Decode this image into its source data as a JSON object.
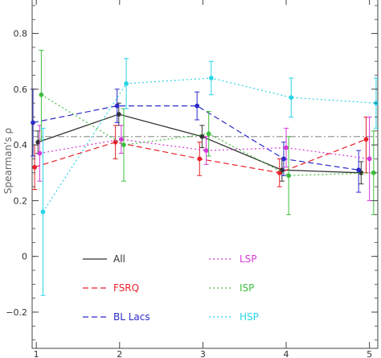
{
  "chart_data": {
    "type": "line",
    "title": "",
    "xlabel": "",
    "ylabel": "Spearman's ρ",
    "xlim": [
      0.95,
      5.1
    ],
    "ylim": [
      -0.33,
      0.92
    ],
    "x_ticks": [
      1,
      2,
      3,
      4,
      5
    ],
    "x_tick_labels": [
      "1",
      "2",
      "3",
      "4",
      "5"
    ],
    "y_ticks": [
      -0.2,
      0,
      0.2,
      0.4,
      0.6,
      0.8
    ],
    "y_tick_labels": [
      "−0.2",
      "0",
      "0.2",
      "0.4",
      "0.6",
      "0.8"
    ],
    "grid": false,
    "legend_position": "bottom-center",
    "reference_line": {
      "y": 0.43,
      "style": "dash-dot",
      "color": "#999999"
    },
    "series": [
      {
        "name": "All",
        "color": "#333333",
        "dash": "solid",
        "x": [
          1.02,
          1.99,
          2.99,
          3.95,
          4.9
        ],
        "y": [
          0.41,
          0.51,
          0.43,
          0.31,
          0.3
        ],
        "err_low": [
          0.04,
          0.04,
          0.04,
          0.04,
          0.04
        ],
        "err_high": [
          0.04,
          0.04,
          0.04,
          0.04,
          0.04
        ]
      },
      {
        "name": "FSRQ",
        "color": "#e8212a",
        "dash": "dashed",
        "x": [
          0.98,
          1.95,
          2.96,
          3.92,
          4.96
        ],
        "y": [
          0.32,
          0.41,
          0.35,
          0.3,
          0.42
        ],
        "err_low": [
          0.08,
          0.06,
          0.06,
          0.05,
          0.12
        ],
        "err_high": [
          0.08,
          0.06,
          0.06,
          0.05,
          0.08
        ]
      },
      {
        "name": "BL Lacs",
        "color": "#2b2bc8",
        "dash": "dashed",
        "x": [
          0.96,
          1.97,
          2.93,
          3.97,
          4.87
        ],
        "y": [
          0.48,
          0.54,
          0.54,
          0.35,
          0.31
        ],
        "err_low": [
          0.12,
          0.06,
          0.05,
          0.06,
          0.08
        ],
        "err_high": [
          0.12,
          0.06,
          0.05,
          0.06,
          0.07
        ]
      },
      {
        "name": "LSP",
        "color": "#d63ad6",
        "dash": "dotted",
        "x": [
          1.04,
          2.02,
          3.04,
          4.0,
          5.0
        ],
        "y": [
          0.37,
          0.42,
          0.38,
          0.39,
          0.35
        ],
        "err_low": [
          0.1,
          0.05,
          0.05,
          0.07,
          0.15
        ],
        "err_high": [
          0.1,
          0.05,
          0.05,
          0.07,
          0.15
        ]
      },
      {
        "name": "ISP",
        "color": "#3fbf3f",
        "dash": "dotted",
        "x": [
          1.06,
          2.05,
          3.07,
          4.03,
          5.05
        ],
        "y": [
          0.58,
          0.4,
          0.44,
          0.29,
          0.3
        ],
        "err_low": [
          0.16,
          0.13,
          0.08,
          0.14,
          0.15
        ],
        "err_high": [
          0.16,
          0.13,
          0.08,
          0.14,
          0.15
        ]
      },
      {
        "name": "HSP",
        "color": "#28d4e8",
        "dash": "dotted",
        "x": [
          1.08,
          2.08,
          3.1,
          4.06,
          5.08
        ],
        "y": [
          0.16,
          0.62,
          0.64,
          0.57,
          0.55
        ],
        "err_low": [
          0.3,
          0.09,
          0.06,
          0.07,
          0.09
        ],
        "err_high": [
          0.3,
          0.09,
          0.06,
          0.07,
          0.09
        ]
      }
    ],
    "legend": [
      {
        "label": "All",
        "color": "#333333",
        "dash": "solid"
      },
      {
        "label": "FSRQ",
        "color": "#e8212a",
        "dash": "dashed"
      },
      {
        "label": "BL Lacs",
        "color": "#2b2bc8",
        "dash": "dashed"
      },
      {
        "label": "LSP",
        "color": "#d63ad6",
        "dash": "dotted"
      },
      {
        "label": "ISP",
        "color": "#3fbf3f",
        "dash": "dotted"
      },
      {
        "label": "HSP",
        "color": "#28d4e8",
        "dash": "dotted"
      }
    ]
  }
}
